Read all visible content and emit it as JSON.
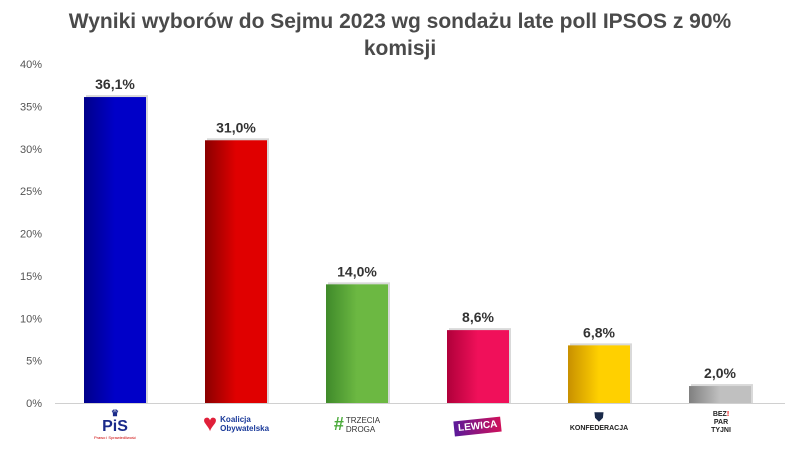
{
  "chart_data": {
    "type": "bar",
    "title": "Wyniki wyborów do Sejmu 2023 wg sondażu late poll IPSOS z 90% komisji",
    "categories": [
      "PiS",
      "Koalicja Obywatelska",
      "Trzecia Droga",
      "Lewica",
      "Konfederacja",
      "Bezpartyjni Samorządowcy"
    ],
    "values": [
      36.1,
      31.0,
      14.0,
      8.6,
      6.8,
      2.0
    ],
    "data_labels": [
      "36,1%",
      "31,0%",
      "14,0%",
      "8,6%",
      "6,8%",
      "2,0%"
    ],
    "colors": [
      [
        "#0000c8",
        "#00008a"
      ],
      [
        "#e00000",
        "#8a0000"
      ],
      [
        "#6cb842",
        "#3f8a2a"
      ],
      [
        "#f0105a",
        "#b0003a"
      ],
      [
        "#ffd000",
        "#c89000"
      ],
      [
        "#c0c0c0",
        "#808080"
      ]
    ],
    "ylim": [
      0,
      40
    ],
    "yticks": [
      "0%",
      "5%",
      "10%",
      "15%",
      "20%",
      "25%",
      "30%",
      "35%",
      "40%"
    ],
    "grid": false,
    "legend": "none"
  },
  "logos": {
    "pis": {
      "text": "PiS",
      "tagline": "Prawo i Sprawiedliwość"
    },
    "ko": {
      "text1": "Koalicja",
      "text2": "Obywatelska"
    },
    "td": {
      "hash": "#",
      "text1": "TRZECIA",
      "text2": "DROGA"
    },
    "lewica": {
      "text": "LEWICA"
    },
    "konf": {
      "text": "KONFEDERACJA"
    },
    "bs": {
      "text1": "BEZ",
      "text2": "PAR",
      "text3": "TYJNI"
    }
  }
}
